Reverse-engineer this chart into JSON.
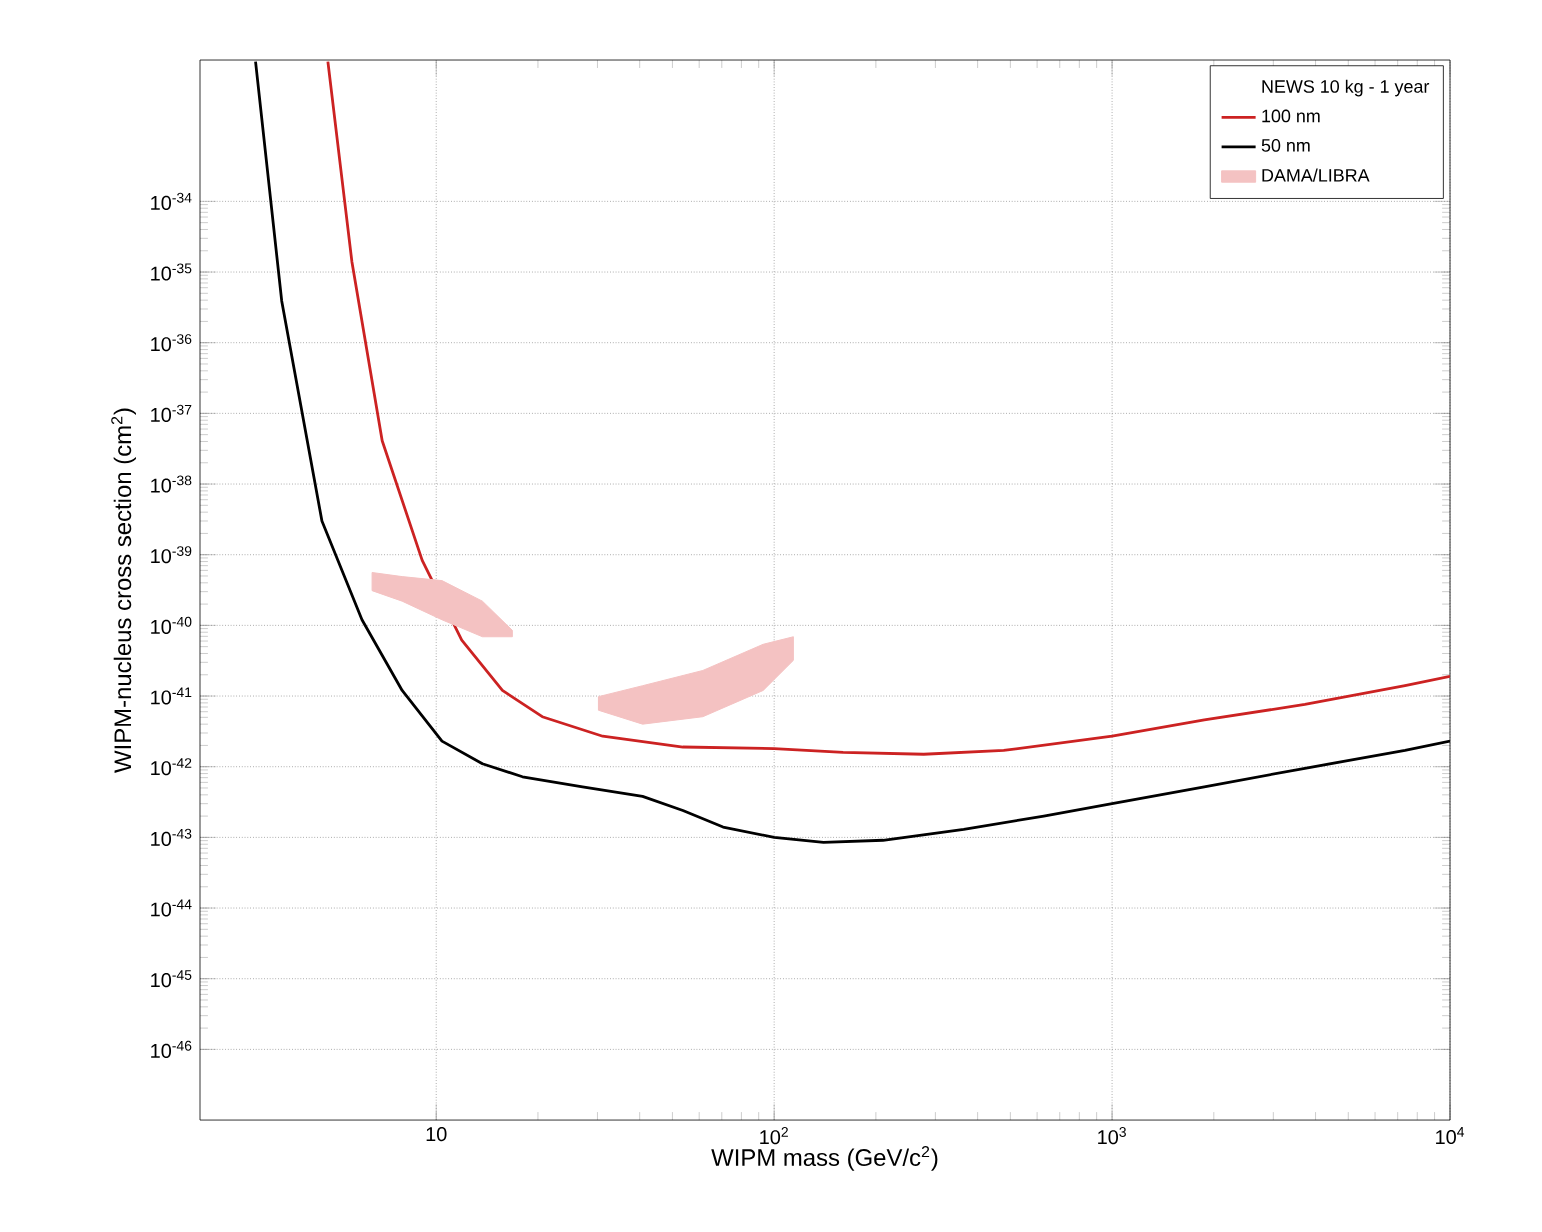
{
  "chart_data": {
    "type": "line",
    "xlabel": "WIPM mass (GeV/c$^{2}$)",
    "ylabel": "WIPM-nucleus cross section (cm$^{2}$)",
    "legend_title": "NEWS 10 kg - 1 year",
    "log": "xy",
    "grid": true,
    "legend": "top right",
    "xlim": [
      2,
      10000
    ],
    "ylim": [
      1e-47,
      1e-32
    ],
    "xticks": [
      {
        "value": 10,
        "label": "10"
      },
      {
        "value": 100,
        "label": "10$^{2}$"
      },
      {
        "value": 1000,
        "label": "10$^{3}$"
      },
      {
        "value": 10000,
        "label": "10$^{4}$"
      }
    ],
    "yticks": [
      {
        "value": 1e-46,
        "label": "10$^{-46}$"
      },
      {
        "value": 1e-45,
        "label": "10$^{-45}$"
      },
      {
        "value": 1e-44,
        "label": "10$^{-44}$"
      },
      {
        "value": 1e-43,
        "label": "10$^{-43}$"
      },
      {
        "value": 1e-42,
        "label": "10$^{-42}$"
      },
      {
        "value": 1e-41,
        "label": "10$^{-41}$"
      },
      {
        "value": 1e-40,
        "label": "10$^{-40}$"
      },
      {
        "value": 1e-39,
        "label": "10$^{-39}$"
      },
      {
        "value": 1e-38,
        "label": "10$^{-38}$"
      },
      {
        "value": 1e-37,
        "label": "10$^{-37}$"
      },
      {
        "value": 1e-36,
        "label": "10$^{-36}$"
      },
      {
        "value": 1e-35,
        "label": "10$^{-35}$"
      },
      {
        "value": 1e-34,
        "label": "10$^{-34}$"
      }
    ],
    "series": [
      {
        "name": "100 nm",
        "color": "#cc2222",
        "x": [
          4.78,
          5.63,
          6.92,
          9.09,
          11.9,
          15.7,
          20.6,
          31.1,
          53.7,
          100,
          160,
          277,
          478,
          1000,
          1875,
          3720,
          7360,
          10000
        ],
        "values": [
          9.5e-33,
          1.4e-35,
          4.1e-38,
          8.3e-40,
          6.2e-41,
          1.2e-41,
          5.1e-42,
          2.7e-42,
          1.9e-42,
          1.8e-42,
          1.6e-42,
          1.5e-42,
          1.7e-42,
          2.7e-42,
          4.6e-42,
          7.6e-42,
          1.4e-41,
          1.9e-41
        ]
      },
      {
        "name": "50 nm",
        "color": "#000000",
        "x": [
          2.92,
          3.49,
          4.59,
          6.03,
          7.93,
          10.4,
          13.7,
          18.0,
          27.1,
          40.8,
          53.7,
          70.6,
          100,
          140,
          210,
          364,
          628,
          1000,
          1875,
          3720,
          7360,
          10000
        ],
        "values": [
          9.5e-33,
          3.9e-36,
          3e-39,
          1.2e-40,
          1.2e-41,
          2.3e-42,
          1.1e-42,
          7.2e-43,
          5.2e-43,
          3.8e-43,
          2.4e-43,
          1.4e-43,
          1e-43,
          8.5e-44,
          9.1e-44,
          1.3e-43,
          2e-43,
          3e-43,
          5.2e-43,
          9.5e-43,
          1.7e-42,
          2.3e-42
        ]
      },
      {
        "name": "DAMA/LIBRA",
        "type": "area",
        "color": "#f4c2c2",
        "x": [
          6.46,
          7.93,
          10.4,
          13.7,
          16.8,
          16.8,
          13.7,
          10.4,
          7.93,
          6.46
        ],
        "values": [
          5.6e-40,
          4.9e-40,
          4.3e-40,
          2.2e-40,
          8.5e-41,
          6.9e-41,
          6.9e-41,
          1.2e-40,
          2.2e-40,
          3.1e-40
        ]
      },
      {
        "type": "area",
        "color": "#f4c2c2",
        "x": [
          30.2,
          40.8,
          61.5,
          92.8,
          114,
          114,
          92.8,
          61.5,
          40.8,
          30.2
        ],
        "values": [
          9.8e-42,
          1.4e-41,
          2.3e-41,
          5.4e-41,
          6.9e-41,
          3.2e-41,
          1.2e-41,
          5.1e-42,
          4e-42,
          6.3e-42
        ]
      }
    ]
  }
}
